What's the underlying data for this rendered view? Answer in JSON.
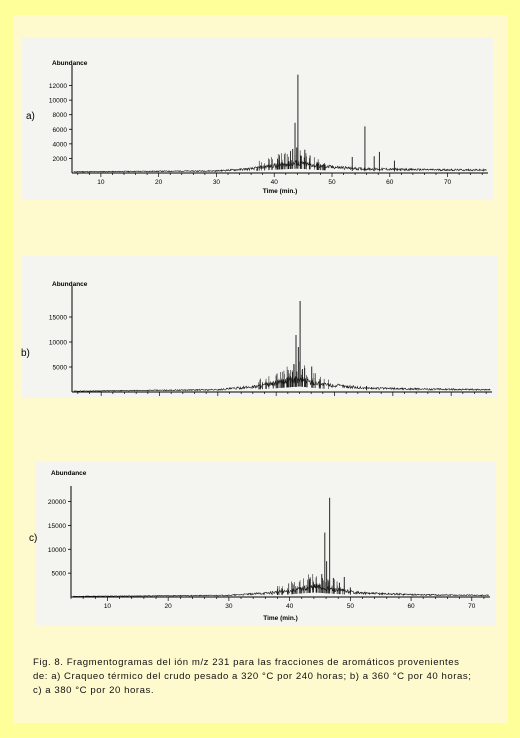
{
  "caption": {
    "line1": "Fig. 8. Fragmentogramas del ión m/z 231 para las fracciones de aromáticos provenientes",
    "line2": "de: a) Craqueo térmico del crudo pesado a 320 °C por 240 horas; b) a 360 °C por 40 horas;",
    "line3": "c) a 380 °C por 20 horas."
  },
  "chart_data": [
    {
      "type": "line",
      "panel_label": "a)",
      "ylabel": "Abundance",
      "xlabel": "Time (min.)",
      "xlim": [
        5,
        77
      ],
      "ylim": [
        0,
        14000
      ],
      "xticks": [
        10,
        20,
        30,
        40,
        50,
        60,
        70
      ],
      "yticks": [
        2000,
        4000,
        6000,
        8000,
        10000,
        12000
      ],
      "ytick_labels": [
        "2000",
        "4000",
        "6000",
        "8000",
        "10000",
        "12000"
      ],
      "baseline": [
        [
          5,
          150
        ],
        [
          30,
          250
        ],
        [
          36,
          500
        ],
        [
          40,
          900
        ],
        [
          44,
          1200
        ],
        [
          48,
          800
        ],
        [
          55,
          500
        ],
        [
          65,
          400
        ],
        [
          77,
          350
        ]
      ],
      "peaks": [
        [
          37,
          600
        ],
        [
          40.5,
          1000
        ],
        [
          41.5,
          1300
        ],
        [
          42.5,
          1600
        ],
        [
          43.2,
          3300
        ],
        [
          43.6,
          6900
        ],
        [
          43.9,
          3500
        ],
        [
          44.1,
          13500
        ],
        [
          44.6,
          2400
        ],
        [
          45.3,
          3200
        ],
        [
          46.2,
          2400
        ],
        [
          47.5,
          1400
        ],
        [
          53.5,
          2200
        ],
        [
          55.7,
          6400
        ],
        [
          57.3,
          2300
        ],
        [
          58.2,
          2900
        ],
        [
          60.8,
          1700
        ]
      ],
      "grid": false
    },
    {
      "type": "line",
      "panel_label": "b)",
      "ylabel": "Abundance",
      "xlabel": "",
      "xlim": [
        5,
        77
      ],
      "ylim": [
        0,
        20000
      ],
      "xticks": [
        10,
        20,
        30,
        40,
        50,
        60,
        70
      ],
      "yticks": [
        5000,
        10000,
        15000
      ],
      "ytick_labels": [
        "5000",
        "10000",
        "15000"
      ],
      "baseline": [
        [
          5,
          150
        ],
        [
          30,
          400
        ],
        [
          36,
          900
        ],
        [
          40,
          1500
        ],
        [
          44,
          2200
        ],
        [
          48,
          1300
        ],
        [
          55,
          700
        ],
        [
          65,
          500
        ],
        [
          77,
          400
        ]
      ],
      "peaks": [
        [
          37.2,
          1100
        ],
        [
          39.5,
          1600
        ],
        [
          41.2,
          2500
        ],
        [
          42,
          2900
        ],
        [
          42.8,
          4000
        ],
        [
          43.4,
          11400
        ],
        [
          43.8,
          9000
        ],
        [
          44.1,
          18200
        ],
        [
          44.5,
          4600
        ],
        [
          45.3,
          3000
        ],
        [
          46.1,
          5100
        ],
        [
          47.4,
          2200
        ],
        [
          55.5,
          1200
        ]
      ],
      "grid": false
    },
    {
      "type": "line",
      "panel_label": "c)",
      "ylabel": "Abundance",
      "xlabel": "Time (min.)",
      "xlim": [
        4,
        73
      ],
      "ylim": [
        0,
        22000
      ],
      "xticks": [
        10,
        20,
        30,
        40,
        50,
        60,
        70
      ],
      "yticks": [
        5000,
        10000,
        15000,
        20000
      ],
      "ytick_labels": [
        "5000",
        "10000",
        "15000",
        "20000"
      ],
      "baseline": [
        [
          4,
          120
        ],
        [
          30,
          300
        ],
        [
          36,
          700
        ],
        [
          40,
          1100
        ],
        [
          44,
          1900
        ],
        [
          47,
          1400
        ],
        [
          52,
          700
        ],
        [
          62,
          400
        ],
        [
          73,
          300
        ]
      ],
      "peaks": [
        [
          38,
          900
        ],
        [
          40.5,
          1300
        ],
        [
          42,
          1800
        ],
        [
          43.3,
          3800
        ],
        [
          44.5,
          2800
        ],
        [
          45.3,
          4800
        ],
        [
          45.8,
          13500
        ],
        [
          46.1,
          7500
        ],
        [
          46.6,
          20800
        ],
        [
          47.2,
          4000
        ],
        [
          48.2,
          3000
        ],
        [
          49,
          4200
        ],
        [
          50,
          2000
        ]
      ],
      "grid": false
    }
  ]
}
